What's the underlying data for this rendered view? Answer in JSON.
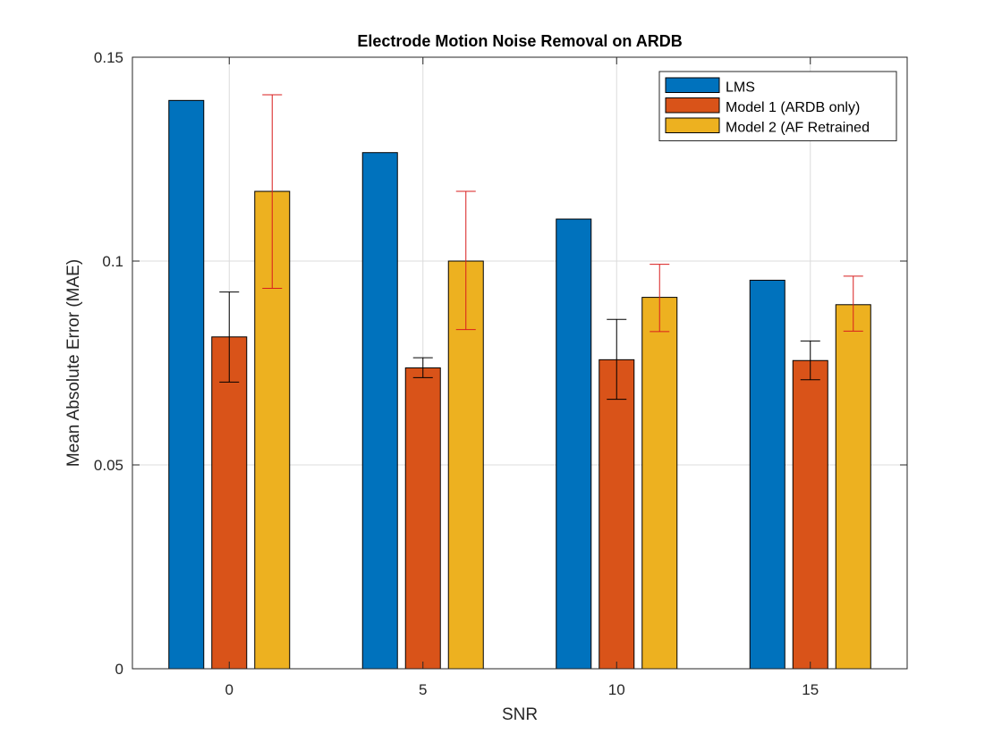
{
  "chart_data": {
    "type": "bar",
    "title": "Electrode Motion Noise Removal on ARDB",
    "xlabel": "SNR",
    "ylabel": "Mean Absolute Error (MAE)",
    "categories": [
      "0",
      "5",
      "10",
      "15"
    ],
    "ylim": [
      0,
      0.15
    ],
    "yticks": [
      0,
      0.05,
      0.1,
      0.15
    ],
    "ytick_labels": [
      "0",
      "0.05",
      "0.1",
      "0.15"
    ],
    "grid": true,
    "legend_position": "top-right",
    "series": [
      {
        "name": "LMS",
        "color": "#0072BD",
        "values": [
          0.1394,
          0.1266,
          0.1103,
          0.0953
        ]
      },
      {
        "name": "Model 1 (ARDB only)",
        "color": "#D95319",
        "values": [
          0.0814,
          0.0738,
          0.0758,
          0.0756
        ],
        "error_low": [
          0.0703,
          0.0714,
          0.0661,
          0.0709
        ],
        "error_high": [
          0.0924,
          0.0763,
          0.0857,
          0.0804
        ],
        "error_color": "#000000"
      },
      {
        "name": "Model 2 (AF Retrained",
        "color": "#EDB120",
        "values": [
          0.1171,
          0.1,
          0.0911,
          0.0893
        ],
        "error_low": [
          0.0933,
          0.0832,
          0.0827,
          0.0828
        ],
        "error_high": [
          0.1408,
          0.1171,
          0.0992,
          0.0963
        ],
        "error_color": "#D81E1E"
      }
    ]
  }
}
